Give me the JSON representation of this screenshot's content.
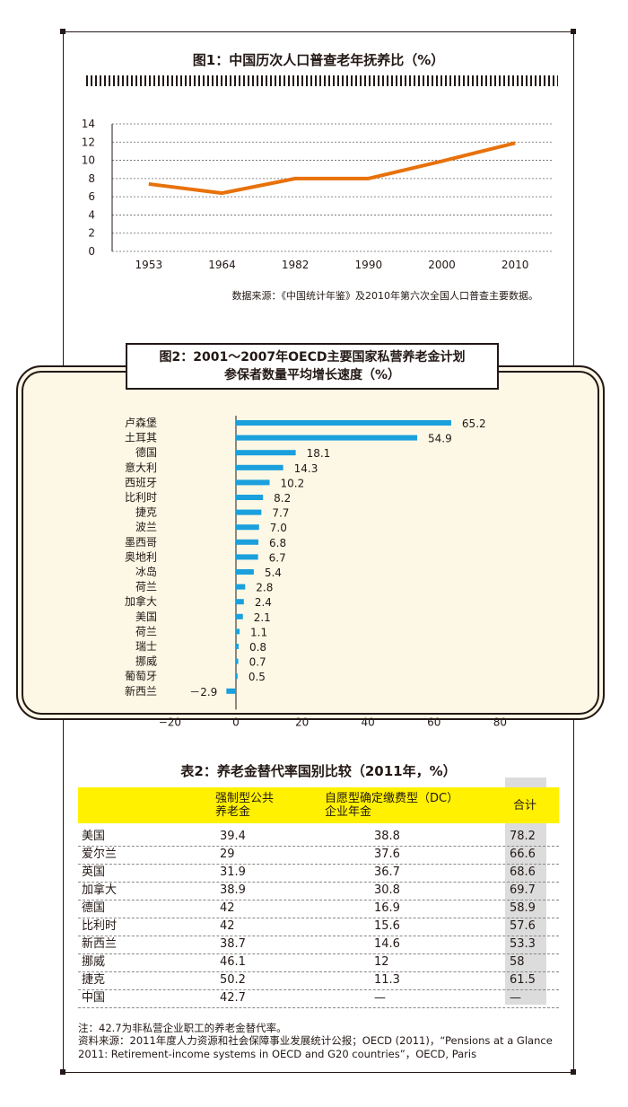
{
  "chart_data": [
    {
      "type": "line",
      "title": "图1：中国历次人口普查老年抚养比（%）",
      "x": [
        "1953",
        "1964",
        "1982",
        "1990",
        "2000",
        "2010"
      ],
      "series": [
        {
          "values": [
            7.4,
            6.4,
            8.0,
            8.0,
            9.9,
            11.9
          ],
          "color": "#e8710a"
        }
      ],
      "ylim": [
        0,
        14
      ],
      "yticks": [
        0,
        2,
        4,
        6,
        8,
        10,
        12,
        14
      ],
      "grid": true,
      "source": "数据来源：《中国统计年鉴》及2010年第六次全国人口普查主要数据。"
    },
    {
      "type": "bar",
      "orientation": "horizontal",
      "title": "图2：2001～2007年OECD主要国家私营养老金计划",
      "subtitle": "参保者数量平均增长速度（%）",
      "categories": [
        "卢森堡",
        "土耳其",
        "德国",
        "意大利",
        "西班牙",
        "比利时",
        "捷克",
        "波兰",
        "墨西哥",
        "奥地利",
        "冰岛",
        "荷兰",
        "加拿大",
        "美国",
        "荷兰",
        "瑞士",
        "挪威",
        "葡萄牙",
        "新西兰"
      ],
      "values": [
        65.2,
        54.9,
        18.1,
        14.3,
        10.2,
        8.2,
        7.7,
        7.0,
        6.8,
        6.7,
        5.4,
        2.8,
        2.4,
        2.1,
        1.1,
        0.8,
        0.7,
        0.5,
        -2.9
      ],
      "value_labels": [
        "65.2",
        "54.9",
        "18.1",
        "14.3",
        "10.2",
        "8.2",
        "7.7",
        "7.0",
        "6.8",
        "6.7",
        "5.4",
        "2.8",
        "2.4",
        "2.1",
        "1.1",
        "0.8",
        "0.7",
        "0.5",
        "－2.9"
      ],
      "xlim": [
        -20,
        80
      ],
      "xticks": [
        -20,
        0,
        20,
        40,
        60,
        80
      ],
      "xtick_labels": [
        "−20",
        "0",
        "20",
        "40",
        "60",
        "80"
      ],
      "color": "#1aa0dc",
      "panel_color": "#fdf8e6"
    },
    {
      "type": "table",
      "title": "表2：养老金替代率国别比较（2011年，%）",
      "columns": [
        "",
        "强制型公共\n养老金",
        "自愿型确定缴费型（DC）\n企业年金",
        "合计"
      ],
      "rows": [
        [
          "美国",
          "39.4",
          "38.8",
          "78.2"
        ],
        [
          "爱尔兰",
          "29",
          "37.6",
          "66.6"
        ],
        [
          "英国",
          "31.9",
          "36.7",
          "68.6"
        ],
        [
          "加拿大",
          "38.9",
          "30.8",
          "69.7"
        ],
        [
          "德国",
          "42",
          "16.9",
          "58.9"
        ],
        [
          "比利时",
          "42",
          "15.6",
          "57.6"
        ],
        [
          "新西兰",
          "38.7",
          "14.6",
          "53.3"
        ],
        [
          "挪威",
          "46.1",
          "12",
          "58"
        ],
        [
          "捷克",
          "50.2",
          "11.3",
          "61.5"
        ],
        [
          "中国",
          "42.7",
          "—",
          "—"
        ]
      ],
      "header_color": "#fff100",
      "note": "注：42.7为非私营企业职工的养老金替代率。",
      "source": "资料来源：2011年度人力资源和社会保障事业发展统计公报；OECD (2011)，“Pensions at a Glance 2011: Retirement-income systems in OECD and G20 countries”，OECD, Paris"
    }
  ]
}
